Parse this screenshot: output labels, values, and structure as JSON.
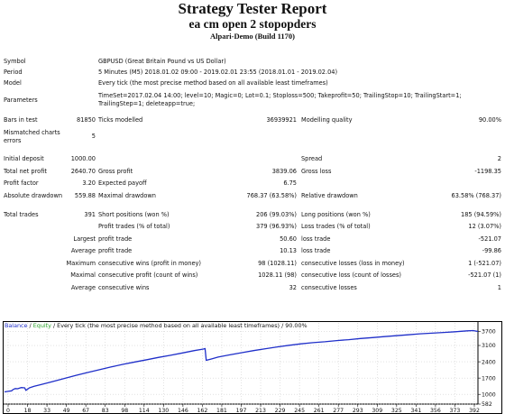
{
  "header": {
    "title": "Strategy Tester Report",
    "subtitle": "ea cm open 2 stopopders",
    "build": "Alpari-Demo (Build 1170)"
  },
  "info": {
    "symbol_label": "Symbol",
    "symbol_value": "GBPUSD (Great Britain Pound vs US Dollar)",
    "period_label": "Period",
    "period_value": "5 Minutes (M5) 2018.01.02 09:00 - 2019.02.01 23:55 (2018.01.01 - 2019.02.04)",
    "model_label": "Model",
    "model_value": "Every tick (the most precise method based on all available least timeframes)",
    "params_label": "Parameters",
    "params_line1": "TimeSet=2017.02.04 14:00; level=10; Magic=0; Lot=0.1; Stoploss=500; Takeprofit=50; TrailingStop=10; TrailingStart=1;",
    "params_line2": "TrailingStep=1; deleteapp=true;"
  },
  "bars": {
    "bars_label": "Bars in test",
    "bars_value": "81850",
    "ticks_label": "Ticks modelled",
    "ticks_value": "36939921",
    "quality_label": "Modelling quality",
    "quality_value": "90.00%",
    "mismatch_label_1": "Mismatched charts",
    "mismatch_label_2": "errors",
    "mismatch_value": "5"
  },
  "results": {
    "deposit_label": "Initial deposit",
    "deposit_value": "1000.00",
    "spread_label": "Spread",
    "spread_value": "2",
    "netprofit_label": "Total net profit",
    "netprofit_value": "2640.70",
    "grossprofit_label": "Gross profit",
    "grossprofit_value": "3839.06",
    "grossloss_label": "Gross loss",
    "grossloss_value": "-1198.35",
    "pf_label": "Profit factor",
    "pf_value": "3.20",
    "payoff_label": "Expected payoff",
    "payoff_value": "6.75",
    "absdd_label": "Absolute drawdown",
    "absdd_value": "559.88",
    "maxdd_label": "Maximal drawdown",
    "maxdd_value": "768.37 (63.58%)",
    "reldd_label": "Relative drawdown",
    "reldd_value": "63.58% (768.37)"
  },
  "trades": {
    "total_label": "Total trades",
    "total_value": "391",
    "short_label": "Short positions (won %)",
    "short_value": "206 (99.03%)",
    "long_label": "Long positions (won %)",
    "long_value": "185 (94.59%)",
    "ptr_label": "Profit trades (% of total)",
    "ptr_value": "379 (96.93%)",
    "ltr_label": "Loss trades (% of total)",
    "ltr_value": "12 (3.07%)",
    "largest_label": "Largest",
    "largest_profit_label": "profit trade",
    "largest_profit_value": "50.60",
    "largest_loss_label": "loss trade",
    "largest_loss_value": "-521.07",
    "average_label": "Average",
    "average_profit_label": "profit trade",
    "average_profit_value": "10.13",
    "average_loss_label": "loss trade",
    "average_loss_value": "-99.86",
    "maximum_label": "Maximum",
    "maxwins_label": "consecutive wins (profit in money)",
    "maxwins_value": "98 (1028.11)",
    "maxlosses_label": "consecutive losses (loss in money)",
    "maxlosses_value": "1 (-521.07)",
    "maximal_label": "Maximal",
    "maxprofit_label": "consecutive profit (count of wins)",
    "maxprofit_value": "1028.11 (98)",
    "maxloss_label": "consecutive loss (count of losses)",
    "maxloss_value": "-521.07 (1)",
    "average2_label": "Average",
    "avgwins_label": "consecutive wins",
    "avgwins_value": "32",
    "avglosses_label": "consecutive losses",
    "avglosses_value": "1"
  },
  "chart_legend": {
    "balance": "Balance",
    "sep": " / ",
    "equity": "Equity",
    "rest": " / Every tick (the most precise method based on all available least timeframes) / 90.00%"
  },
  "chart_data": {
    "type": "line",
    "colors": {
      "balance": "#1f2fc9",
      "equity": "#2ea32e",
      "grid": "#cfcfcf",
      "border": "#000000"
    },
    "ylim": [
      582,
      3760
    ],
    "y_ticks": [
      "3700",
      "3100",
      "2400",
      "1700",
      "1000",
      "582"
    ],
    "y_tick_values": [
      3700,
      3100,
      2400,
      1700,
      1000,
      582
    ],
    "x_ticks": [
      "0",
      "18",
      "33",
      "49",
      "67",
      "83",
      "98",
      "114",
      "130",
      "146",
      "162",
      "181",
      "197",
      "213",
      "229",
      "245",
      "261",
      "277",
      "293",
      "309",
      "325",
      "341",
      "356",
      "373",
      "392"
    ],
    "xlim": [
      0,
      399
    ],
    "series": [
      {
        "name": "Balance",
        "x": [
          0,
          3,
          6,
          7,
          9,
          11,
          14,
          17,
          18,
          21,
          25,
          30,
          40,
          50,
          60,
          70,
          80,
          90,
          100,
          110,
          120,
          130,
          140,
          150,
          160,
          166,
          168,
          169,
          170,
          175,
          180,
          190,
          200,
          210,
          220,
          230,
          240,
          250,
          260,
          270,
          280,
          290,
          300,
          310,
          320,
          330,
          340,
          350,
          360,
          370,
          380,
          390,
          395,
          399
        ],
        "y": [
          1105,
          1130,
          1150,
          1200,
          1250,
          1240,
          1290,
          1280,
          1170,
          1280,
          1345,
          1410,
          1545,
          1680,
          1810,
          1940,
          2060,
          2180,
          2290,
          2390,
          2490,
          2590,
          2680,
          2780,
          2880,
          2930,
          2950,
          2970,
          2460,
          2530,
          2600,
          2700,
          2790,
          2880,
          2960,
          3040,
          3110,
          3170,
          3220,
          3260,
          3310,
          3350,
          3400,
          3440,
          3480,
          3520,
          3560,
          3600,
          3630,
          3660,
          3690,
          3730,
          3740,
          3700
        ]
      }
    ]
  }
}
